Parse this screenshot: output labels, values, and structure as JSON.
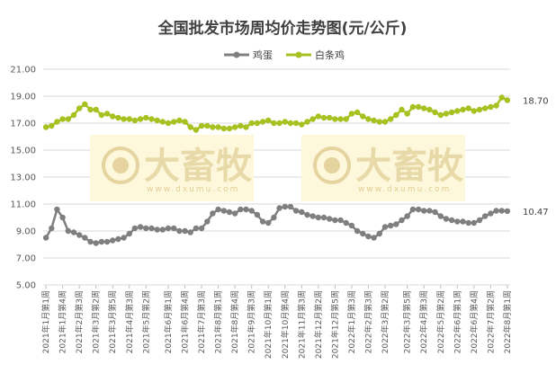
{
  "chart_data": {
    "type": "line",
    "title": "全国批发市场周均价走势图(元/公斤)",
    "ylim": [
      5.0,
      21.0
    ],
    "yticks": [
      "5.00",
      "7.00",
      "9.00",
      "11.00",
      "13.00",
      "15.00",
      "17.00",
      "19.00",
      "21.00"
    ],
    "grid": true,
    "legend_position": "top",
    "x_tick_labels": [
      "2021年1月第1周",
      "2021年1月第4周",
      "2021年2月第3周",
      "2021年3月第2周",
      "2021年3月第5周",
      "2021年4月第3周",
      "2021年5月第2周",
      "2021年6月第1周",
      "2021年6月第4周",
      "2021年7月第3周",
      "2021年8月第1周",
      "2021年8月第4周",
      "2021年9月第3周",
      "2021年10月第1周",
      "2021年10月第4周",
      "2021年11月第3周",
      "2021年12月第2周",
      "2021年12月第5周",
      "2022年1月第3周",
      "2022年2月第3周",
      "2022年3月第2周",
      "2022年3月第5周",
      "2022年4月第3周",
      "2022年5月第2周",
      "2022年6月第1周",
      "2022年6月第4周",
      "2022年7月第2周",
      "2022年8月第1周"
    ],
    "series": [
      {
        "name": "鸡蛋",
        "color": "#7f7f7f",
        "end_label": "10.47",
        "values": [
          8.5,
          9.2,
          10.6,
          10.0,
          9.0,
          8.9,
          8.7,
          8.5,
          8.2,
          8.1,
          8.2,
          8.2,
          8.3,
          8.4,
          8.5,
          8.8,
          9.2,
          9.3,
          9.2,
          9.2,
          9.1,
          9.1,
          9.2,
          9.2,
          9.0,
          9.0,
          8.9,
          9.2,
          9.2,
          9.7,
          10.3,
          10.6,
          10.5,
          10.4,
          10.3,
          10.6,
          10.6,
          10.5,
          10.2,
          9.7,
          9.6,
          10.0,
          10.7,
          10.8,
          10.8,
          10.5,
          10.4,
          10.2,
          10.1,
          10.0,
          10.0,
          9.9,
          9.8,
          9.8,
          9.6,
          9.4,
          9.0,
          8.8,
          8.6,
          8.5,
          8.8,
          9.3,
          9.4,
          9.5,
          9.8,
          10.1,
          10.6,
          10.6,
          10.5,
          10.5,
          10.4,
          10.1,
          9.9,
          9.8,
          9.7,
          9.7,
          9.6,
          9.6,
          9.8,
          10.1,
          10.3,
          10.5,
          10.5,
          10.47
        ]
      },
      {
        "name": "白条鸡",
        "color": "#a8c020",
        "end_label": "18.70",
        "values": [
          16.7,
          16.8,
          17.1,
          17.3,
          17.3,
          17.6,
          18.1,
          18.4,
          18.0,
          18.0,
          17.6,
          17.7,
          17.5,
          17.4,
          17.3,
          17.3,
          17.2,
          17.3,
          17.4,
          17.3,
          17.2,
          17.1,
          17.0,
          17.1,
          17.2,
          17.1,
          16.7,
          16.5,
          16.8,
          16.8,
          16.7,
          16.7,
          16.6,
          16.6,
          16.7,
          16.8,
          16.7,
          17.0,
          17.0,
          17.1,
          17.2,
          17.0,
          17.0,
          17.1,
          17.0,
          17.0,
          16.9,
          17.1,
          17.3,
          17.5,
          17.4,
          17.4,
          17.3,
          17.3,
          17.3,
          17.7,
          17.8,
          17.5,
          17.3,
          17.2,
          17.1,
          17.1,
          17.3,
          17.6,
          18.0,
          17.7,
          18.2,
          18.2,
          18.1,
          18.0,
          17.8,
          17.6,
          17.7,
          17.8,
          17.9,
          18.0,
          18.1,
          17.9,
          18.0,
          18.1,
          18.2,
          18.3,
          18.9,
          18.7
        ]
      }
    ]
  },
  "watermark": {
    "brand": "大畜牧",
    "url": "www.dxumu.com"
  }
}
